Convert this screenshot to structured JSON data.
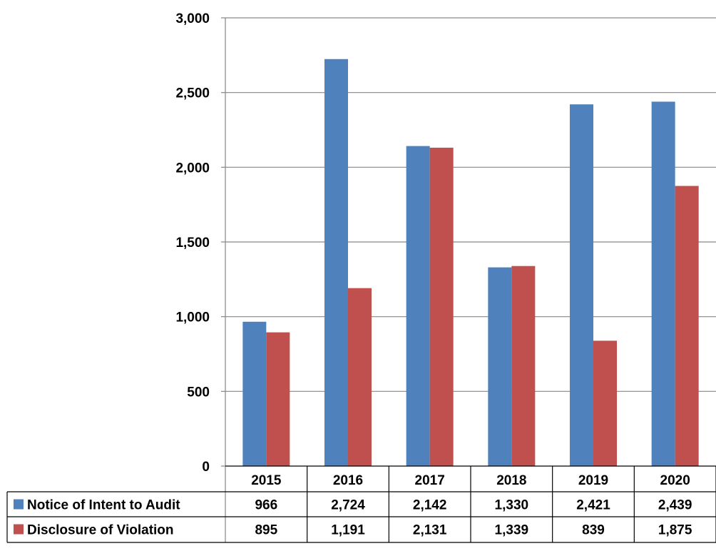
{
  "chart_data": {
    "type": "bar",
    "categories": [
      "2015",
      "2016",
      "2017",
      "2018",
      "2019",
      "2020"
    ],
    "series": [
      {
        "name": "Notice of Intent to Audit",
        "color": "#4F81BD",
        "values": [
          966,
          2724,
          2142,
          1330,
          2421,
          2439
        ]
      },
      {
        "name": "Disclosure of Violation",
        "color": "#C0504D",
        "values": [
          895,
          1191,
          2131,
          1339,
          839,
          1875
        ]
      }
    ],
    "ylim": [
      0,
      3000
    ],
    "yticks": [
      "0",
      "500",
      "1,000",
      "1,500",
      "2,000",
      "2,500",
      "3,000"
    ],
    "table": {
      "rows": [
        {
          "label": "Notice of Intent to Audit",
          "cells": [
            "966",
            "2,724",
            "2,142",
            "1,330",
            "2,421",
            "2,439"
          ]
        },
        {
          "label": "Disclosure of Violation",
          "cells": [
            "895",
            "1,191",
            "2,131",
            "1,339",
            "839",
            "1,875"
          ]
        }
      ]
    },
    "grid": true,
    "legend": "data-table"
  }
}
